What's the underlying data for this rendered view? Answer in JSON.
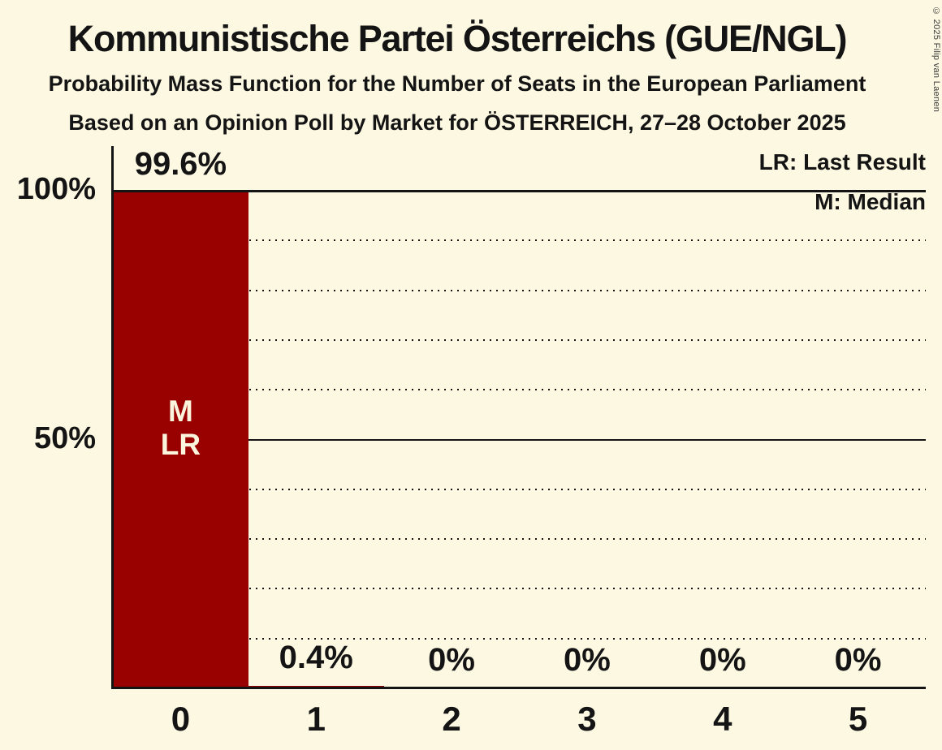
{
  "page": {
    "title": "Kommunistische Partei Österreichs (GUE/NGL)",
    "subtitle": "Probability Mass Function for the Number of Seats in the European Parliament",
    "source_line": "Based on an Opinion Poll by Market for ÖSTERREICH, 27–28 October 2025",
    "copyright": "© 2025 Filip van Laenen"
  },
  "legend": {
    "last_result": "LR: Last Result",
    "median": "M: Median"
  },
  "colors": {
    "background": "#FDF8E2",
    "bar": "#990000",
    "text": "#141414",
    "bar_annotation": "#FAF5DC"
  },
  "chart_data": {
    "type": "bar",
    "title": "Probability Mass Function for the Number of Seats in the European Parliament",
    "categories": [
      "0",
      "1",
      "2",
      "3",
      "4",
      "5"
    ],
    "values": [
      99.6,
      0.4,
      0,
      0,
      0,
      0
    ],
    "value_labels": [
      "99.6%",
      "0.4%",
      "0%",
      "0%",
      "0%",
      "0%"
    ],
    "ylim": [
      0,
      100
    ],
    "y_ticks": [
      {
        "label": "100%",
        "value": 100
      },
      {
        "label": "50%",
        "value": 50
      }
    ],
    "solid_gridlines": [
      100,
      50
    ],
    "dotted_gridlines": [
      90,
      80,
      70,
      60,
      40,
      30,
      20,
      10
    ],
    "annotations": [
      {
        "category_index": 0,
        "text": "M\nLR",
        "meaning": "Median and Last Result"
      }
    ],
    "legend_position": "top-right",
    "grid": "horizontal-only"
  }
}
